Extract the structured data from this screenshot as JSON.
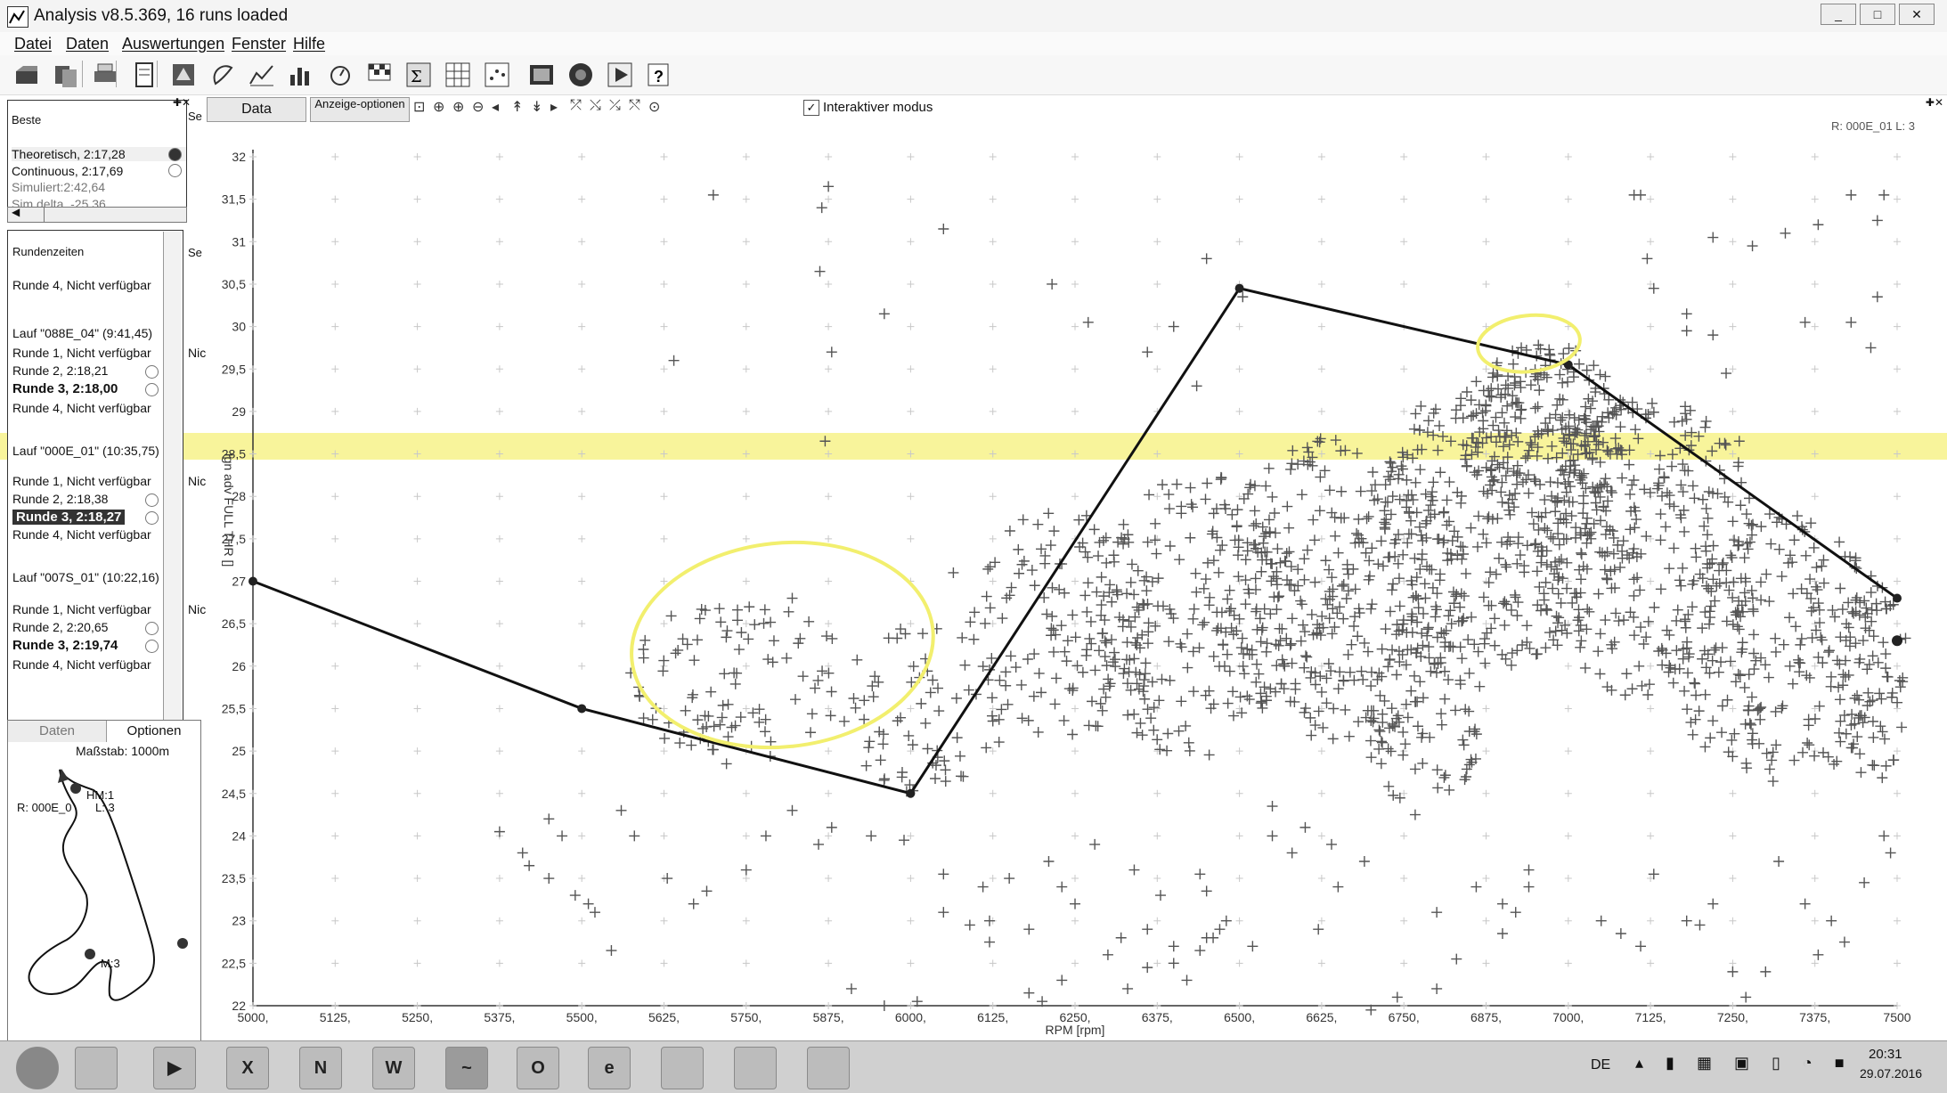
{
  "window": {
    "title": "Analysis v8.5.369, 16 runs loaded",
    "min": "_",
    "max": "□",
    "close": "✕"
  },
  "menu": [
    "Datei",
    "Daten",
    "Auswertungen",
    "Fenster",
    "Hilfe"
  ],
  "toolbar_icons": [
    "open-icon",
    "open-runs-icon",
    "print-icon",
    "report-icon",
    "export-icon",
    "track-icon",
    "xy-plot-icon",
    "histogram-icon",
    "stopwatch-icon",
    "race-flag-icon",
    "math-icon",
    "table-icon",
    "scatter-icon",
    "video-icon",
    "gauge-icon",
    "play-icon",
    "help-icon"
  ],
  "best": {
    "header": "Beste",
    "col2": "Se",
    "rows": [
      "Theoretisch, 2:17,28",
      "Continuous, 2:17,69",
      "Simuliert:2:42,64",
      "Sim delta, -25,36"
    ]
  },
  "laps": {
    "header": "Rundenzeiten",
    "col2": "Se",
    "rows": [
      {
        "text": "Runde 4, Nicht verfügbar",
        "bold": false
      },
      {
        "text": "Lauf \"088E_04\" (9:41,45)",
        "bold": false
      },
      {
        "text": "Runde 1, Nicht verfügbar",
        "bold": false,
        "side": "Nic"
      },
      {
        "text": "Runde 2, 2:18,21",
        "bold": false
      },
      {
        "text": "Runde 3, 2:18,00",
        "bold": true
      },
      {
        "text": "Runde 4, Nicht verfügbar",
        "bold": false
      },
      {
        "text": "Lauf \"000E_01\" (10:35,75)",
        "bold": false
      },
      {
        "text": "Runde 1, Nicht verfügbar",
        "bold": false,
        "side": "Nic"
      },
      {
        "text": "Runde 2, 2:18,38",
        "bold": false
      },
      {
        "text": "Runde 3, 2:18,27",
        "bold": true,
        "selected": true
      },
      {
        "text": "Runde 4, Nicht verfügbar",
        "bold": false
      },
      {
        "text": "Lauf \"007S_01\" (10:22,16)",
        "bold": false
      },
      {
        "text": "Runde 1, Nicht verfügbar",
        "bold": false,
        "side": "Nic"
      },
      {
        "text": "Runde 2, 2:20,65",
        "bold": false
      },
      {
        "text": "Runde 3, 2:19,74",
        "bold": true
      },
      {
        "text": "Runde 4, Nicht verfügbar",
        "bold": false
      }
    ]
  },
  "map": {
    "tab_data": "Daten",
    "tab_options": "Optionen",
    "scale": "Maßstab: 1000m",
    "run_label": "R: 000E_0",
    "lap_label": "L: 3",
    "marker1": "HM:1",
    "marker3": "M:3"
  },
  "main": {
    "tab_data": "Data",
    "tab_display": "Anzeige-optionen",
    "interactive_label": "Interaktiver modus",
    "interactive_checked": true,
    "run_info": "R: 000E_01  L: 3"
  },
  "chart_data": {
    "type": "scatter",
    "xlabel": "RPM [rpm]",
    "ylabel": "Ign adv FULL THR []",
    "xlim": [
      5000,
      7500
    ],
    "ylim": [
      22,
      32
    ],
    "x_ticks": [
      "5000",
      "5125",
      "5250",
      "5375",
      "5500",
      "5625",
      "5750",
      "5875",
      "6000",
      "6125",
      "6250",
      "6375",
      "6500",
      "6625",
      "6750",
      "6875",
      "7000",
      "7125",
      "7250",
      "7375",
      "7500"
    ],
    "y_ticks": [
      "22",
      "22,5",
      "23",
      "23,5",
      "24",
      "24,5",
      "25",
      "25,5",
      "26",
      "26,5",
      "27",
      "27,5",
      "28",
      "28,5",
      "29",
      "29,5",
      "30",
      "30,5",
      "31",
      "31,5",
      "32"
    ],
    "grid": true,
    "map_line": {
      "x": [
        5000,
        5500,
        6000,
        6500,
        7000,
        7500
      ],
      "y": [
        27.0,
        25.5,
        24.5,
        30.45,
        29.55,
        26.8
      ]
    },
    "extra_points": {
      "x": [
        7500
      ],
      "y": [
        26.3
      ]
    },
    "sparse_points": {
      "x": [
        5700,
        5875,
        5865,
        5862,
        5960,
        6050,
        5880,
        5870,
        5640,
        5820,
        6065,
        6215,
        6450,
        6505,
        6270,
        6400,
        6360,
        6435,
        5375,
        5410,
        5420,
        5450,
        5450,
        5470,
        5490,
        5520,
        5510,
        5545,
        5560,
        5580,
        5630,
        5670,
        5690,
        5750,
        5780,
        5820,
        5860,
        5880,
        5940,
        5990,
        6050,
        6110,
        6120,
        6150,
        6180,
        6210,
        6230,
        6250,
        6280,
        6300,
        6320,
        6340,
        6360,
        6380,
        6400,
        6420,
        6450,
        6480,
        6520,
        6550,
        6580,
        6600,
        6620,
        6650,
        6690,
        6740,
        6800,
        6860,
        6900,
        6940,
        7050,
        7080,
        7110,
        7130,
        7180,
        7200,
        7220,
        7250,
        7270,
        7300,
        7320,
        7360,
        7380,
        7400,
        7420,
        7450,
        7480,
        7490,
        7110,
        7120,
        7130,
        7180,
        7220,
        7280,
        7330,
        7380,
        7430,
        7470,
        7480,
        7180,
        7220,
        7240,
        7260,
        7430,
        7460,
        7360,
        7470,
        7100,
        6700,
        6800,
        6830,
        6900,
        6920,
        6940,
        6640,
        6550,
        6080,
        5720,
        6440,
        6460,
        6470,
        6400,
        6360,
        6330,
        6180,
        6200,
        6230,
        6120,
        6090,
        6050,
        5910,
        5960,
        6010,
        6450,
        6440
      ],
      "y": [
        31.55,
        31.65,
        31.4,
        30.65,
        30.15,
        31.15,
        29.7,
        28.65,
        29.6,
        26.8,
        27.1,
        30.5,
        30.8,
        30.35,
        30.05,
        30.0,
        29.7,
        29.3,
        24.05,
        23.8,
        23.65,
        23.5,
        24.2,
        24.0,
        23.3,
        23.1,
        23.2,
        22.65,
        24.3,
        24.0,
        23.5,
        23.2,
        23.35,
        23.6,
        24.0,
        24.3,
        23.9,
        24.1,
        24.0,
        23.95,
        23.55,
        23.4,
        23.0,
        23.5,
        22.9,
        23.7,
        23.4,
        23.2,
        23.9,
        22.6,
        22.8,
        23.6,
        22.9,
        23.3,
        22.5,
        22.3,
        22.8,
        23.0,
        22.7,
        24.0,
        23.8,
        24.1,
        22.9,
        23.4,
        23.7,
        22.1,
        23.1,
        23.4,
        23.2,
        23.6,
        23.0,
        22.85,
        22.7,
        23.55,
        23.0,
        22.95,
        23.2,
        22.4,
        22.1,
        22.4,
        23.7,
        23.2,
        22.6,
        23.0,
        22.75,
        23.45,
        24.0,
        23.8,
        31.55,
        30.8,
        30.45,
        30.15,
        31.05,
        30.95,
        31.1,
        31.2,
        31.55,
        31.25,
        31.55,
        29.95,
        29.9,
        29.45,
        28.65,
        30.05,
        29.75,
        30.05,
        30.35,
        31.55,
        21.95,
        22.2,
        22.55,
        22.85,
        23.1,
        23.4,
        23.9,
        24.35,
        24.7,
        24.85,
        22.65,
        22.8,
        22.9,
        22.7,
        22.45,
        22.2,
        22.15,
        22.05,
        22.3,
        22.75,
        22.95,
        23.1,
        22.2,
        22.0,
        22.05,
        23.35,
        23.55
      ]
    },
    "clusters": [
      {
        "cx": 5740,
        "cy": 25.85,
        "rx": 170,
        "ry": 0.95,
        "n": 95
      },
      {
        "cx": 6020,
        "cy": 25.5,
        "rx": 130,
        "ry": 1.0,
        "n": 70
      },
      {
        "cx": 6240,
        "cy": 26.5,
        "rx": 150,
        "ry": 1.4,
        "n": 130
      },
      {
        "cx": 6430,
        "cy": 26.6,
        "rx": 170,
        "ry": 1.7,
        "n": 220
      },
      {
        "cx": 6650,
        "cy": 26.9,
        "rx": 200,
        "ry": 1.8,
        "n": 330
      },
      {
        "cx": 6780,
        "cy": 25.4,
        "rx": 90,
        "ry": 1.2,
        "n": 90
      },
      {
        "cx": 6900,
        "cy": 27.8,
        "rx": 180,
        "ry": 1.8,
        "n": 330
      },
      {
        "cx": 6960,
        "cy": 28.8,
        "rx": 130,
        "ry": 1.0,
        "n": 190
      },
      {
        "cx": 7120,
        "cy": 27.4,
        "rx": 170,
        "ry": 1.8,
        "n": 280
      },
      {
        "cx": 7320,
        "cy": 26.2,
        "rx": 170,
        "ry": 1.6,
        "n": 250
      },
      {
        "cx": 7460,
        "cy": 25.8,
        "rx": 60,
        "ry": 1.2,
        "n": 60
      }
    ],
    "annotations": [
      {
        "type": "ellipse",
        "cx": 5805,
        "cy": 26.25,
        "rx": 230,
        "ry": 1.2,
        "color": "#f2ef6e"
      },
      {
        "type": "ellipse",
        "cx": 6940,
        "cy": 29.8,
        "rx": 78,
        "ry": 0.33,
        "color": "#f2ef6e"
      }
    ]
  },
  "taskbar": {
    "apps": [
      "start-icon",
      "file-explorer-icon",
      "media-player-icon",
      "excel-icon",
      "onenote-icon",
      "word-icon",
      "analysis-app-icon",
      "outlook-icon",
      "internet-explorer-icon",
      "remote-icon",
      "tool-icon",
      "notes-icon"
    ],
    "app_letters": [
      "",
      "",
      "▶",
      "X",
      "N",
      "W",
      "~",
      "O",
      "e",
      "",
      "",
      ""
    ],
    "lang": "DE",
    "time": "20:31",
    "date": "29.07.2016"
  },
  "colors": {
    "highlight": "#f5f07a",
    "marker": "#555555",
    "line": "#111111"
  }
}
